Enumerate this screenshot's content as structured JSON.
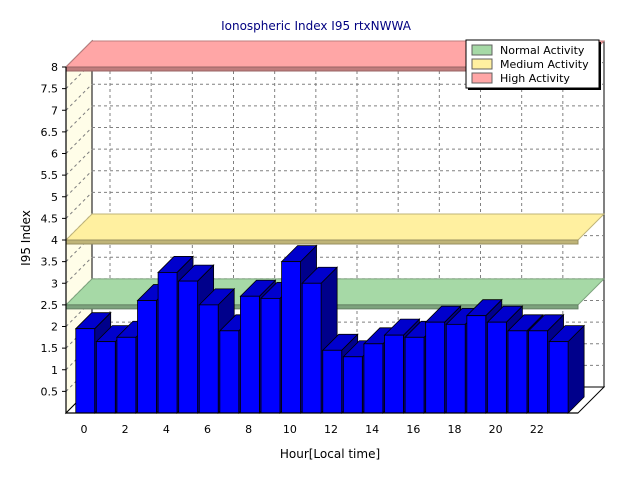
{
  "chart_data": {
    "type": "bar",
    "title": "Ionospheric Index I95 rtxNWWA",
    "xlabel": "Hour[Local time]",
    "ylabel": "I95 Index",
    "ylim": [
      0,
      8
    ],
    "y_ticks": [
      "0.5",
      "1",
      "1.5",
      "2",
      "2.5",
      "3",
      "3.5",
      "4",
      "4.5",
      "5",
      "5.5",
      "6",
      "6.5",
      "7",
      "7.5",
      "8"
    ],
    "x_ticks": [
      "0",
      "2",
      "4",
      "6",
      "8",
      "10",
      "12",
      "14",
      "16",
      "18",
      "20",
      "22"
    ],
    "categories": [
      0,
      1,
      2,
      3,
      4,
      5,
      6,
      7,
      8,
      9,
      10,
      11,
      12,
      13,
      14,
      15,
      16,
      17,
      18,
      19,
      20,
      21,
      22,
      23
    ],
    "values": [
      1.95,
      1.65,
      1.75,
      2.6,
      3.25,
      3.05,
      2.5,
      1.9,
      2.7,
      2.65,
      3.5,
      3.0,
      1.45,
      1.3,
      1.6,
      1.8,
      1.75,
      2.1,
      2.05,
      2.25,
      2.1,
      1.9,
      1.9,
      1.65
    ],
    "bar_color": "#0000ff",
    "grid": true,
    "legend_position": "top-right",
    "bands": [
      {
        "name": "Normal Activity",
        "level": 2.5,
        "color": "#a6d9a6"
      },
      {
        "name": "Medium Activity",
        "level": 4.0,
        "color": "#fff0a0"
      },
      {
        "name": "High Activity",
        "level": 8.0,
        "color": "#ffa6a6"
      }
    ]
  }
}
